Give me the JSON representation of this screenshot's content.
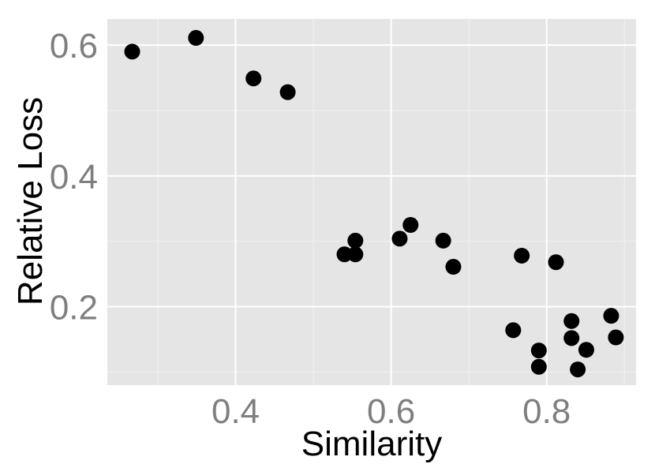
{
  "chart_data": {
    "type": "scatter",
    "title": "",
    "xlabel": "Similarity",
    "ylabel": "Relative Loss",
    "xlim": [
      0.235,
      0.915
    ],
    "ylim": [
      0.08,
      0.64
    ],
    "x_ticks": [
      0.4,
      0.6,
      0.8
    ],
    "x_tick_labels": [
      "0.4",
      "0.6",
      "0.8"
    ],
    "x_minor_ticks": [
      0.3,
      0.5,
      0.7,
      0.9
    ],
    "y_ticks": [
      0.2,
      0.4,
      0.6
    ],
    "y_tick_labels": [
      "0.2",
      "0.4",
      "0.6"
    ],
    "y_minor_ticks": [
      0.1,
      0.3,
      0.5
    ],
    "grid": true,
    "legend": "none",
    "colors": {
      "panel": "#e5e5e5",
      "grid": "#ffffff",
      "point": "#000000",
      "tick_text": "#7f7f7f"
    },
    "points": [
      {
        "x": 0.267,
        "y": 0.59
      },
      {
        "x": 0.349,
        "y": 0.611
      },
      {
        "x": 0.423,
        "y": 0.549
      },
      {
        "x": 0.467,
        "y": 0.528
      },
      {
        "x": 0.54,
        "y": 0.28
      },
      {
        "x": 0.554,
        "y": 0.301
      },
      {
        "x": 0.554,
        "y": 0.28
      },
      {
        "x": 0.611,
        "y": 0.304
      },
      {
        "x": 0.625,
        "y": 0.325
      },
      {
        "x": 0.667,
        "y": 0.301
      },
      {
        "x": 0.68,
        "y": 0.261
      },
      {
        "x": 0.757,
        "y": 0.164
      },
      {
        "x": 0.768,
        "y": 0.278
      },
      {
        "x": 0.79,
        "y": 0.133
      },
      {
        "x": 0.79,
        "y": 0.108
      },
      {
        "x": 0.812,
        "y": 0.268
      },
      {
        "x": 0.832,
        "y": 0.178
      },
      {
        "x": 0.832,
        "y": 0.152
      },
      {
        "x": 0.84,
        "y": 0.104
      },
      {
        "x": 0.851,
        "y": 0.134
      },
      {
        "x": 0.883,
        "y": 0.186
      },
      {
        "x": 0.889,
        "y": 0.153
      }
    ]
  }
}
